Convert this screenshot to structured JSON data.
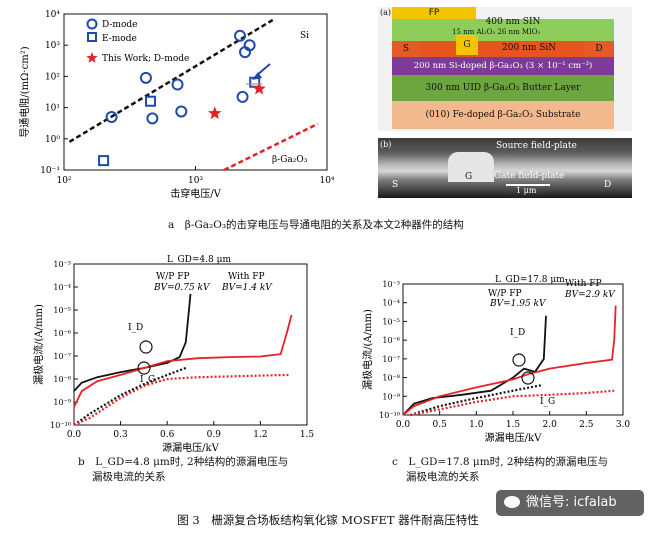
{
  "figure_title": "图 3　栅源复合场板结构氧化镓 MOSFET 器件耐高压特性",
  "captions": {
    "a": "a　β-Ga₂O₃的击穿电压与导通电阻的关系及本文2种器件的结构",
    "b_line1": "b　L_GD=4.8 μm时, 2种结构的源漏电压与",
    "b_line2": "漏极电流的关系",
    "c_line1": "c　L_GD=17.8 μm时, 2种结构的源漏电压与",
    "c_line2": "漏极电流的关系"
  },
  "watermark": "微信号: icfalab",
  "colors": {
    "red": "#e8202a",
    "blue": "#1f4aa8",
    "black": "#111111",
    "grey": "#444444"
  },
  "chart_data": [
    {
      "type": "scatter",
      "id": "a-left",
      "xlabel": "击穿电压/V",
      "ylabel": "导通电阻/(mΩ·cm²)",
      "xscale": "log",
      "yscale": "log",
      "xlim": [
        100,
        10000
      ],
      "ylim": [
        0.1,
        10000
      ],
      "xticks": [
        {
          "v": 100,
          "l": "10²"
        },
        {
          "v": 1000,
          "l": "10³"
        },
        {
          "v": 10000,
          "l": "10⁴"
        }
      ],
      "yticks": [
        {
          "v": 0.1,
          "l": "10⁻¹"
        },
        {
          "v": 1,
          "l": "10⁰"
        },
        {
          "v": 10,
          "l": "10¹"
        },
        {
          "v": 100,
          "l": "10²"
        },
        {
          "v": 1000,
          "l": "10³"
        },
        {
          "v": 10000,
          "l": "10⁴"
        }
      ],
      "legend": [
        "D-mode",
        "E-mode",
        "This Work; D-mode"
      ],
      "annotations": [
        "Si",
        "β-Ga₂O₃"
      ],
      "series": [
        {
          "name": "D-mode",
          "marker": "circle",
          "points": [
            [
              230,
              5
            ],
            [
              420,
              90
            ],
            [
              470,
              4.5
            ],
            [
              730,
              55
            ],
            [
              780,
              7.5
            ],
            [
              2180,
              2000
            ],
            [
              2280,
              22
            ],
            [
              2380,
              600
            ],
            [
              2580,
              1000
            ]
          ]
        },
        {
          "name": "E-mode",
          "marker": "square",
          "points": [
            [
              200,
              0.2
            ],
            [
              455,
              16
            ],
            [
              2820,
              65
            ]
          ]
        },
        {
          "name": "This Work; D-mode",
          "marker": "star",
          "points": [
            [
              1400,
              6.5
            ],
            [
              3050,
              40
            ]
          ]
        }
      ],
      "limit_lines": [
        {
          "name": "Si",
          "points": [
            [
              110,
              0.8
            ],
            [
              4000,
              7000
            ]
          ],
          "color": "black"
        },
        {
          "name": "β-Ga₂O₃",
          "points": [
            [
              1650,
              0.1
            ],
            [
              8500,
              3
            ]
          ],
          "color": "red"
        }
      ]
    },
    {
      "type": "line",
      "id": "b",
      "title": "L_GD=4.8 μm",
      "xlabel": "源漏电压/kV",
      "ylabel": "漏极电流/(A/mm)",
      "yscale": "log",
      "xlim": [
        0,
        1.5
      ],
      "ylim": [
        1e-10,
        0.001
      ],
      "xticks": [
        0.0,
        0.3,
        0.6,
        0.9,
        1.2,
        1.5
      ],
      "yticks": [
        {
          "v": 1e-10,
          "l": "10⁻¹⁰"
        },
        {
          "v": 1e-09,
          "l": "10⁻⁹"
        },
        {
          "v": 1e-08,
          "l": "10⁻⁸"
        },
        {
          "v": 1e-07,
          "l": "10⁻⁷"
        },
        {
          "v": 1e-06,
          "l": "10⁻⁶"
        },
        {
          "v": 1e-05,
          "l": "10⁻⁵"
        },
        {
          "v": 0.0001,
          "l": "10⁻⁴"
        },
        {
          "v": 0.001,
          "l": "10⁻³"
        }
      ],
      "annotations": [
        {
          "text": "W/P FP"
        },
        {
          "text": "BV=0.75 kV"
        },
        {
          "text": "With FP"
        },
        {
          "text": "BV=1.4 kV"
        },
        {
          "text": "I_D"
        },
        {
          "text": "I_G"
        }
      ],
      "series": [
        {
          "name": "W/P FP I_D",
          "style": "solid",
          "color": "black",
          "points": [
            [
              0,
              3e-09
            ],
            [
              0.05,
              7e-09
            ],
            [
              0.15,
              1.2e-08
            ],
            [
              0.3,
              2e-08
            ],
            [
              0.45,
              3e-08
            ],
            [
              0.6,
              5e-08
            ],
            [
              0.68,
              9e-08
            ],
            [
              0.72,
              4e-07
            ],
            [
              0.75,
              5e-05
            ]
          ]
        },
        {
          "name": "With FP I_D",
          "style": "solid",
          "color": "red",
          "points": [
            [
              0,
              6e-10
            ],
            [
              0.05,
              3e-09
            ],
            [
              0.15,
              8e-09
            ],
            [
              0.3,
              1.5e-08
            ],
            [
              0.45,
              3e-08
            ],
            [
              0.6,
              6e-08
            ],
            [
              0.8,
              8e-08
            ],
            [
              1.0,
              9e-08
            ],
            [
              1.2,
              9.5e-08
            ],
            [
              1.33,
              1.2e-07
            ],
            [
              1.37,
              1e-06
            ],
            [
              1.4,
              6e-06
            ]
          ]
        },
        {
          "name": "W/P FP I_G",
          "style": "dotted",
          "color": "black",
          "points": [
            [
              0,
              1e-10
            ],
            [
              0.1,
              3e-10
            ],
            [
              0.3,
              2e-09
            ],
            [
              0.45,
              6e-09
            ],
            [
              0.6,
              1.5e-08
            ],
            [
              0.72,
              3e-08
            ]
          ]
        },
        {
          "name": "With FP I_G",
          "style": "dotted",
          "color": "red",
          "points": [
            [
              0,
              1e-10
            ],
            [
              0.1,
              2e-10
            ],
            [
              0.3,
              1.5e-09
            ],
            [
              0.45,
              5e-09
            ],
            [
              0.6,
              1e-08
            ],
            [
              0.8,
              1.2e-08
            ],
            [
              1.0,
              1.3e-08
            ],
            [
              1.2,
              1.4e-08
            ],
            [
              1.38,
              1.5e-08
            ]
          ]
        }
      ]
    },
    {
      "type": "line",
      "id": "c",
      "title": "L_GD=17.8 μm",
      "xlabel": "源漏电压/kV",
      "ylabel": "漏极电流/(A/mm)",
      "yscale": "log",
      "xlim": [
        0,
        3.0
      ],
      "ylim": [
        1e-10,
        0.001
      ],
      "xticks": [
        0.0,
        0.5,
        1.0,
        1.5,
        2.0,
        2.5,
        3.0
      ],
      "yticks": [
        {
          "v": 1e-10,
          "l": "10⁻¹⁰"
        },
        {
          "v": 1e-09,
          "l": "10⁻⁹"
        },
        {
          "v": 1e-08,
          "l": "10⁻⁸"
        },
        {
          "v": 1e-07,
          "l": "10⁻⁷"
        },
        {
          "v": 1e-06,
          "l": "10⁻⁶"
        },
        {
          "v": 1e-05,
          "l": "10⁻⁵"
        },
        {
          "v": 0.0001,
          "l": "10⁻⁴"
        },
        {
          "v": 0.001,
          "l": "10⁻³"
        }
      ],
      "annotations": [
        {
          "text": "W/P FP"
        },
        {
          "text": "BV=1.95 kV"
        },
        {
          "text": "With FP"
        },
        {
          "text": "BV=2.9 kV"
        },
        {
          "text": "I_D"
        },
        {
          "text": "I_G"
        }
      ],
      "series": [
        {
          "name": "W/P FP I_D",
          "style": "solid",
          "color": "black",
          "points": [
            [
              0,
              1e-10
            ],
            [
              0.15,
              4e-10
            ],
            [
              0.4,
              8e-10
            ],
            [
              0.8,
              1.2e-09
            ],
            [
              1.2,
              2e-09
            ],
            [
              1.5,
              1e-08
            ],
            [
              1.65,
              3e-08
            ],
            [
              1.8,
              2e-08
            ],
            [
              1.92,
              1e-07
            ],
            [
              1.95,
              2e-05
            ]
          ]
        },
        {
          "name": "With FP I_D",
          "style": "solid",
          "color": "red",
          "points": [
            [
              0,
              1e-10
            ],
            [
              0.15,
              3e-10
            ],
            [
              0.5,
              1e-09
            ],
            [
              1.0,
              3e-09
            ],
            [
              1.5,
              8e-09
            ],
            [
              1.7,
              1.5e-08
            ],
            [
              2.0,
              3e-08
            ],
            [
              2.5,
              6e-08
            ],
            [
              2.85,
              9e-08
            ],
            [
              2.88,
              1e-06
            ],
            [
              2.9,
              7e-05
            ]
          ]
        },
        {
          "name": "W/P FP I_G",
          "style": "dotted",
          "color": "black",
          "points": [
            [
              0.1,
              1e-10
            ],
            [
              0.5,
              3e-10
            ],
            [
              1.0,
              8e-10
            ],
            [
              1.5,
              2e-09
            ],
            [
              1.9,
              4e-09
            ]
          ]
        },
        {
          "name": "With FP I_G",
          "style": "dotted",
          "color": "red",
          "points": [
            [
              0.1,
              1e-10
            ],
            [
              0.5,
              2e-10
            ],
            [
              1.0,
              5e-10
            ],
            [
              1.5,
              1e-09
            ],
            [
              2.0,
              1.2e-09
            ],
            [
              2.5,
              1.5e-09
            ],
            [
              2.88,
              2e-09
            ]
          ]
        }
      ]
    }
  ],
  "structure": {
    "panel_a_label": "(a)",
    "panel_b_label": "(b)",
    "layers": {
      "fp": "FP",
      "sin400": "400 nm SIN",
      "alo": "15 nm Al₂O₃ 26 nm MIO₂",
      "sin200": "200 nm SiN",
      "s": "S",
      "g": "G",
      "d": "D",
      "doped": "200 nm Si-doped β-Ga₂O₃ (3 × 10⁻¹ cm⁻³)",
      "buffer": "300 nm UID β-Ga₂O₃ Butter Layer",
      "substrate": "(010) Fe-doped β-Ga₂O₃ Substrate"
    },
    "sem": {
      "source_fp": "Source field-plate",
      "gate_fp": "Gate field-plate",
      "s": "S",
      "g": "G",
      "d": "D",
      "scale": "1 μm"
    }
  }
}
